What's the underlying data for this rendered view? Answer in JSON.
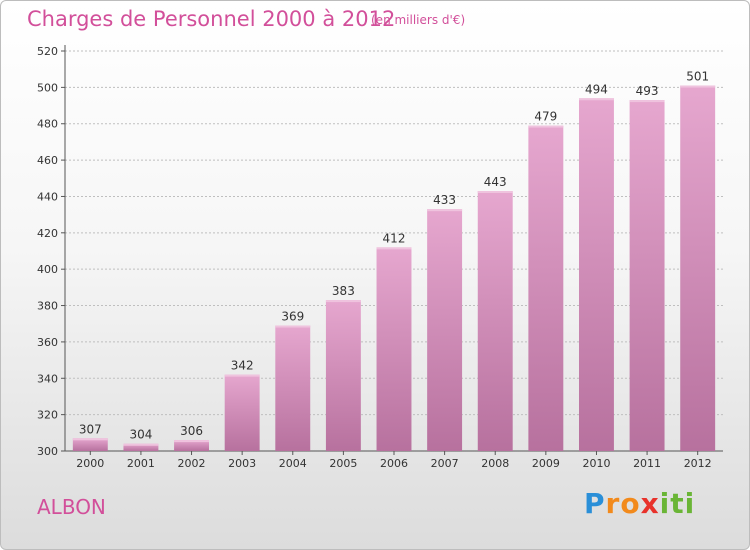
{
  "header": {
    "title": "Charges de Personnel 2000 à 2012",
    "subtitle": "(en milliers d'€)"
  },
  "footer": {
    "city": "ALBON",
    "logo_text": "Proxiti",
    "logo_letters": [
      {
        "ch": "P",
        "color": "#2a8fd8"
      },
      {
        "ch": "r",
        "color": "#f28a1c"
      },
      {
        "ch": "o",
        "color": "#f28a1c"
      },
      {
        "ch": "x",
        "color": "#e8322b"
      },
      {
        "ch": "i",
        "color": "#6ab536"
      },
      {
        "ch": "t",
        "color": "#6ab536"
      },
      {
        "ch": "i",
        "color": "#6ab536"
      }
    ]
  },
  "colors": {
    "accent": "#d24f9a",
    "bar_top": "#e6a7cf",
    "bar_bottom": "#b7719e",
    "grid": "#bfbfbf"
  },
  "chart_data": {
    "type": "bar",
    "title": "Charges de Personnel 2000 à 2012",
    "subtitle": "(en milliers d'€)",
    "xlabel": "",
    "ylabel": "",
    "categories": [
      "2000",
      "2001",
      "2002",
      "2003",
      "2004",
      "2005",
      "2006",
      "2007",
      "2008",
      "2009",
      "2010",
      "2011",
      "2012"
    ],
    "values": [
      307,
      304,
      306,
      342,
      369,
      383,
      412,
      433,
      443,
      479,
      494,
      493,
      501
    ],
    "ylim": [
      300,
      520
    ],
    "yticks": [
      300,
      320,
      340,
      360,
      380,
      400,
      420,
      440,
      460,
      480,
      500,
      520
    ],
    "grid": true,
    "data_labels": true
  }
}
